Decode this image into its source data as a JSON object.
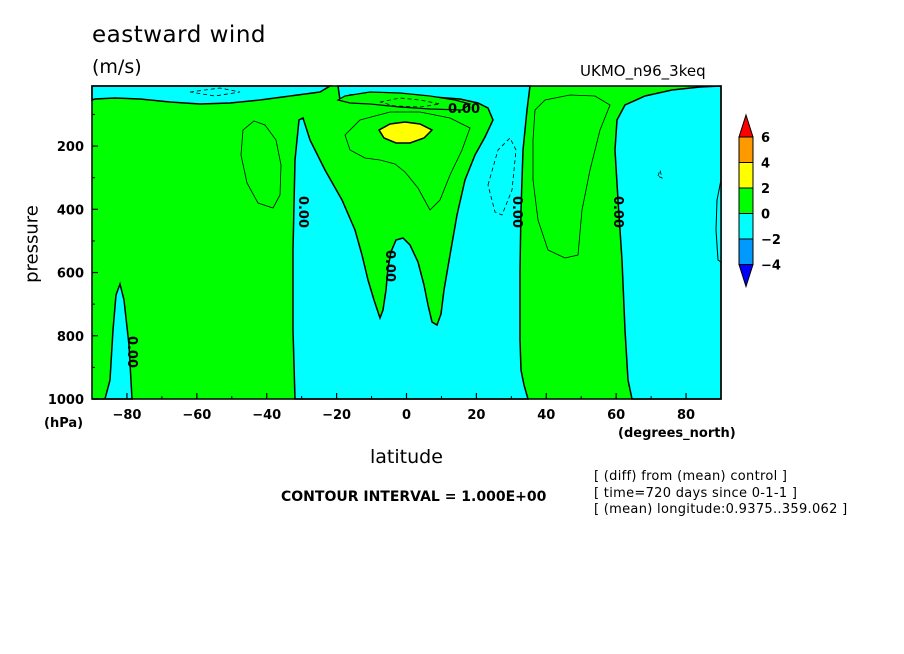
{
  "chart_data": {
    "type": "contour",
    "title": "eastward wind",
    "units": "(m/s)",
    "run_label": "UKMO_n96_3keq",
    "xlabel": "latitude",
    "xunit": "(degrees_north)",
    "ylabel": "pressure",
    "yunit": "(hPa)",
    "xlim": [
      -90,
      90
    ],
    "ylim": [
      1000,
      10
    ],
    "y_inverted": true,
    "x_ticks": [
      -80,
      -60,
      -40,
      -20,
      0,
      20,
      40,
      60,
      80
    ],
    "y_ticks": [
      200,
      400,
      600,
      800,
      1000
    ],
    "contour_interval_text": "CONTOUR INTERVAL = 1.000E+00",
    "contour_labels": [
      "0.00",
      "0.00",
      "0.00",
      "0.00",
      "0.00",
      "0.00"
    ],
    "colorbar": {
      "levels": [
        6,
        4,
        2,
        0,
        -2,
        -4
      ],
      "bands": [
        {
          "range": [
            6,
            null
          ],
          "color": "#ff0000"
        },
        {
          "range": [
            4,
            6
          ],
          "color": "#ff9900"
        },
        {
          "range": [
            2,
            4
          ],
          "color": "#ffff00"
        },
        {
          "range": [
            0,
            2
          ],
          "color": "#00ff00"
        },
        {
          "range": [
            -2,
            0
          ],
          "color": "#00ffff"
        },
        {
          "range": [
            -4,
            -2
          ],
          "color": "#0099ff"
        },
        {
          "range": [
            null,
            -4
          ],
          "color": "#0000ff"
        }
      ]
    },
    "colors": {
      "positive": "#00ff00",
      "negative": "#00ffff",
      "max": "#ffff00"
    }
  },
  "notes": [
    "[ (diff) from (mean) control ]",
    "[ time=720 days since 0-1-1 ]",
    "[ (mean) longitude:0.9375..359.062 ]"
  ]
}
